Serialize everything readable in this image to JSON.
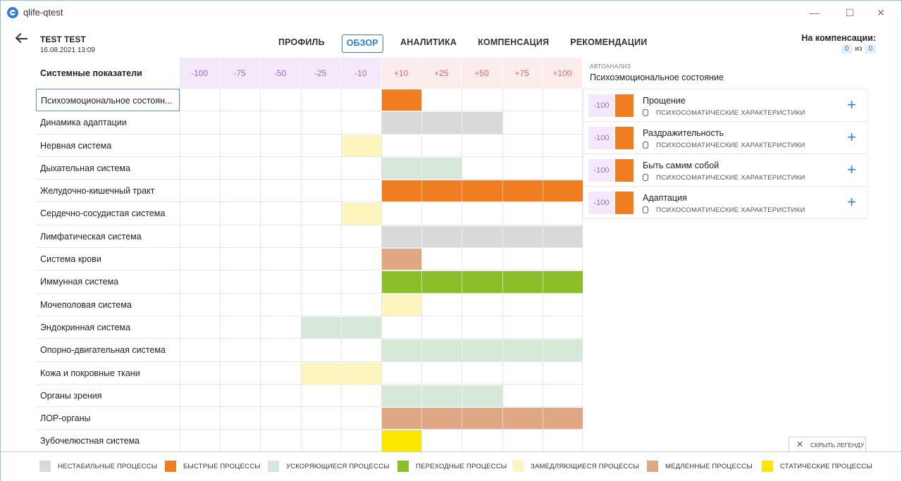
{
  "window": {
    "title": "qlife-qtest"
  },
  "patient": {
    "name": "TEST TEST",
    "date": "16.08.2021 13:09"
  },
  "tabs": [
    "ПРОФИЛЬ",
    "ОБЗОР",
    "АНАЛИТИКА",
    "КОМПЕНСАЦИЯ",
    "РЕКОМЕНДАЦИИ"
  ],
  "active_tab": "ОБЗОР",
  "compensation": {
    "title": "На компенсации:",
    "current": "0",
    "sep": "из",
    "total": "0"
  },
  "grid": {
    "header_label": "Системные показатели",
    "scale": [
      "-100",
      "-75",
      "-50",
      "-25",
      "-10",
      "+10",
      "+25",
      "+50",
      "+75",
      "+100"
    ],
    "rows": [
      {
        "label": "Психоэмоциональное состоян...",
        "start": 5,
        "span": 1,
        "color": "fast",
        "selected": true
      },
      {
        "label": "Динамика адаптации",
        "start": 5,
        "span": 3,
        "color": "unstable"
      },
      {
        "label": "Нервная система",
        "start": 4,
        "span": 1,
        "color": "slowing"
      },
      {
        "label": "Дыхательная система",
        "start": 5,
        "span": 2,
        "color": "accel"
      },
      {
        "label": "Желудочно-кишечный тракт",
        "start": 5,
        "span": 5,
        "color": "fast"
      },
      {
        "label": "Сердечно-сосудистая система",
        "start": 4,
        "span": 1,
        "color": "slowing"
      },
      {
        "label": "Лимфатическая система",
        "start": 5,
        "span": 5,
        "color": "unstable"
      },
      {
        "label": "Система крови",
        "start": 5,
        "span": 1,
        "color": "slow"
      },
      {
        "label": "Иммунная система",
        "start": 5,
        "span": 5,
        "color": "trans"
      },
      {
        "label": "Мочеполовая система",
        "start": 5,
        "span": 1,
        "color": "slowing"
      },
      {
        "label": "Эндокринная система",
        "start": 3,
        "span": 2,
        "color": "accel"
      },
      {
        "label": "Опорно-двигательная система",
        "start": 5,
        "span": 5,
        "color": "accel"
      },
      {
        "label": "Кожа и покровные ткани",
        "start": 3,
        "span": 2,
        "color": "slowing"
      },
      {
        "label": "Органы зрения",
        "start": 5,
        "span": 3,
        "color": "accel"
      },
      {
        "label": "ЛОР-органы",
        "start": 5,
        "span": 5,
        "color": "slow"
      },
      {
        "label": "Зубочелюстная система",
        "start": 5,
        "span": 1,
        "color": "static"
      }
    ]
  },
  "panel": {
    "subtitle": "АВТОАНАЛИЗ",
    "title": "Психоэмоциональное состояние",
    "items": [
      {
        "score": "-100",
        "name": "Прощение",
        "category": "ПСИХОСОМАТИЧЕСКИЕ ХАРАКТЕРИСТИКИ"
      },
      {
        "score": "-100",
        "name": "Раздражительность",
        "category": "ПСИХОСОМАТИЧЕСКИЕ ХАРАКТЕРИСТИКИ"
      },
      {
        "score": "-100",
        "name": "Быть самим собой",
        "category": "ПСИХОСОМАТИЧЕСКИЕ ХАРАКТЕРИСТИКИ"
      },
      {
        "score": "-100",
        "name": "Адаптация",
        "category": "ПСИХОСОМАТИЧЕСКИЕ ХАРАКТЕРИСТИКИ"
      }
    ]
  },
  "legend_toggle": "СКРЫТЬ ЛЕГЕНДУ",
  "legend": [
    {
      "key": "unstable",
      "label": "НЕСТАБИЛЬНЫЕ ПРОЦЕССЫ",
      "color": "#d9d9d9"
    },
    {
      "key": "fast",
      "label": "БЫСТРЫЕ ПРОЦЕССЫ",
      "color": "#f07d1f"
    },
    {
      "key": "accel",
      "label": "УСКОРЯЮЩИЕСЯ ПРОЦЕССЫ",
      "color": "#d6e9d9"
    },
    {
      "key": "trans",
      "label": "ПЕРЕХОДНЫЕ ПРОЦЕССЫ",
      "color": "#8bbf2a"
    },
    {
      "key": "slowing",
      "label": "ЗАМЕДЛЯЮЩИЕСЯ ПРОЦЕССЫ",
      "color": "#fdf5bd"
    },
    {
      "key": "slow",
      "label": "МЕДЛЕННЫЕ ПРОЦЕССЫ",
      "color": "#dfa783"
    },
    {
      "key": "static",
      "label": "СТАТИЧЕСКИЕ ПРОЦЕССЫ",
      "color": "#fbe700"
    }
  ]
}
